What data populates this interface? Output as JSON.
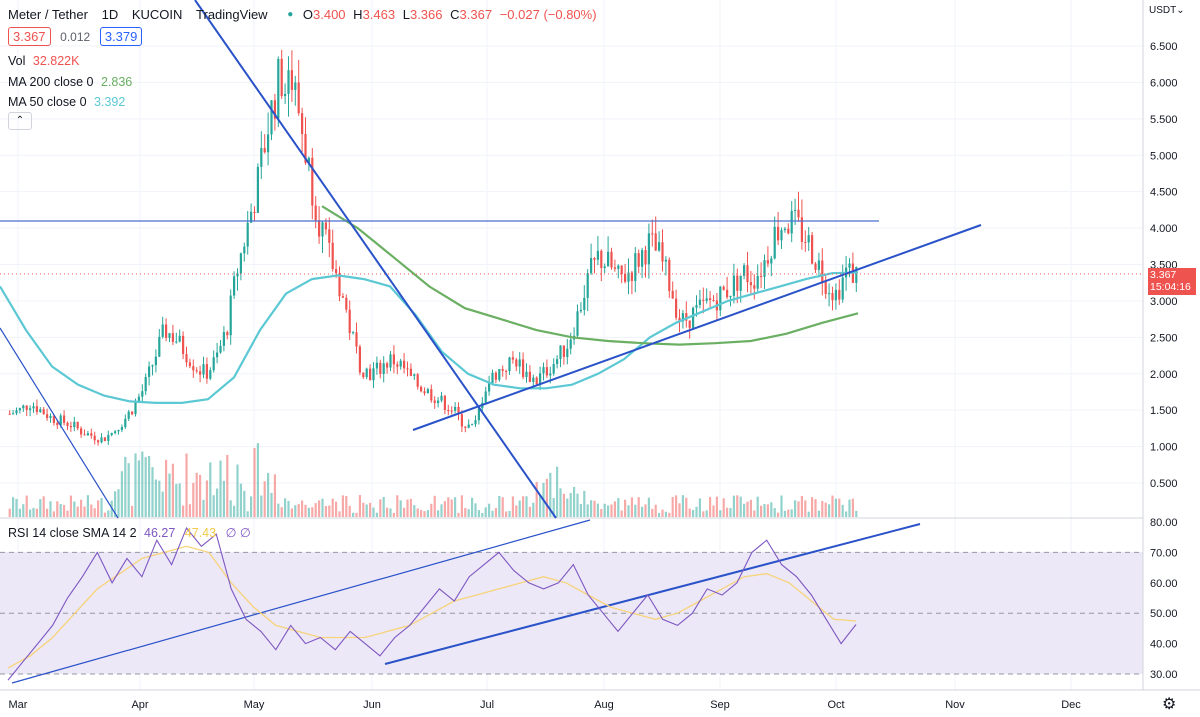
{
  "header": {
    "symbol": "Meter / Tether",
    "interval": "1D",
    "exchange": "KUCOIN",
    "source": "TradingView",
    "ohlc": [
      {
        "k": "O",
        "v": "3.400"
      },
      {
        "k": "H",
        "v": "3.463"
      },
      {
        "k": "L",
        "v": "3.366"
      },
      {
        "k": "C",
        "v": "3.367"
      }
    ],
    "change": "−0.027 (−0.80%)",
    "bid": "3.367",
    "spread": "0.012",
    "ask": "3.379"
  },
  "indicators": {
    "vol_label": "Vol",
    "vol_value": "32.822K",
    "ma200_label": "MA 200 close 0",
    "ma200_value": "2.836",
    "ma50_label": "MA 50 close 0",
    "ma50_value": "3.392",
    "collapse_glyph": "⌃"
  },
  "rsi": {
    "label": "RSI 14 close SMA 14 2",
    "value": "46.27",
    "sma_value": "47.43",
    "extra": "∅  ∅"
  },
  "axis": {
    "currency": "USDT⌄",
    "last_price": "3.367",
    "countdown": "15:04:16"
  },
  "colors": {
    "up": "#26a69a",
    "down": "#ef5350",
    "ma50": "#5bc8d4",
    "ma200": "#6aaf62",
    "trend": "#2a52c9",
    "rsi": "#7e57c2",
    "rsi_sma": "#f7d37b",
    "rsi_band": "#ece8f7"
  },
  "chart_data": [
    {
      "type": "candlestick",
      "title": "Meter / Tether · 1D · KUCOIN",
      "x_ticks": [
        "Mar",
        "Apr",
        "May",
        "Jun",
        "Jul",
        "Aug",
        "Sep",
        "Oct",
        "Nov",
        "Dec"
      ],
      "y_ticks": [
        "6.500",
        "6.000",
        "5.500",
        "5.000",
        "4.500",
        "4.000",
        "3.500",
        "3.000",
        "2.500",
        "2.000",
        "1.500",
        "1.000",
        "0.500"
      ],
      "ylim": [
        0.1,
        6.7
      ],
      "grid": true,
      "horizontal_level": 4.1,
      "close_series": [
        1.45,
        1.5,
        1.6,
        1.5,
        1.4,
        1.35,
        1.3,
        1.2,
        1.15,
        1.1,
        1.2,
        1.35,
        1.55,
        1.8,
        2.2,
        2.6,
        2.5,
        2.3,
        2.1,
        2.0,
        2.2,
        2.6,
        3.4,
        4.0,
        4.6,
        5.4,
        6.0,
        6.2,
        5.6,
        4.8,
        4.1,
        3.6,
        3.2,
        2.6,
        2.1,
        2.0,
        2.1,
        2.2,
        2.1,
        1.9,
        1.8,
        1.7,
        1.6,
        1.5,
        1.3,
        1.25,
        1.8,
        2.0,
        2.1,
        2.2,
        2.0,
        1.9,
        2.05,
        2.2,
        2.4,
        2.8,
        3.3,
        3.6,
        3.5,
        3.3,
        3.4,
        3.6,
        3.8,
        3.6,
        3.2,
        2.7,
        2.8,
        2.9,
        3.0,
        3.1,
        3.2,
        3.4,
        3.3,
        3.5,
        3.9,
        4.1,
        4.05,
        3.9,
        3.6,
        3.3,
        3.1,
        3.4,
        3.37
      ],
      "ma50_series": [
        3.2,
        2.6,
        2.1,
        1.85,
        1.7,
        1.62,
        1.6,
        1.6,
        1.65,
        1.95,
        2.6,
        3.1,
        3.3,
        3.35,
        3.3,
        3.2,
        2.8,
        2.3,
        2.0,
        1.85,
        1.8,
        1.8,
        1.85,
        2.0,
        2.2,
        2.5,
        2.7,
        2.85,
        3.0,
        3.1,
        3.2,
        3.3,
        3.38,
        3.39
      ],
      "ma200_series": [
        4.3,
        4.0,
        3.6,
        3.2,
        2.9,
        2.75,
        2.6,
        2.5,
        2.45,
        2.42,
        2.4,
        2.42,
        2.45,
        2.55,
        2.7,
        2.83
      ],
      "volume_max_label": "32.822K"
    },
    {
      "type": "line",
      "title": "RSI 14 close SMA 14 2",
      "y_ticks": [
        "80.00",
        "70.00",
        "60.00",
        "50.00",
        "40.00",
        "30.00"
      ],
      "ylim": [
        27,
        82
      ],
      "bands": [
        30,
        50,
        70
      ],
      "rsi_series": [
        28,
        34,
        40,
        46,
        55,
        62,
        70,
        60,
        68,
        62,
        74,
        66,
        78,
        72,
        76,
        58,
        48,
        44,
        38,
        46,
        40,
        42,
        38,
        44,
        40,
        36,
        42,
        46,
        52,
        58,
        54,
        62,
        66,
        70,
        64,
        60,
        58,
        60,
        66,
        56,
        50,
        44,
        50,
        56,
        48,
        46,
        50,
        58,
        56,
        60,
        70,
        74,
        66,
        62,
        56,
        48,
        40,
        46.27
      ],
      "sma_series": [
        32,
        36,
        42,
        50,
        58,
        63,
        68,
        70,
        72,
        70,
        60,
        52,
        46,
        44,
        42,
        42,
        42,
        44,
        46,
        50,
        54,
        56,
        58,
        60,
        62,
        60,
        56,
        52,
        50,
        48,
        50,
        54,
        58,
        62,
        63,
        60,
        54,
        48,
        47.43
      ]
    }
  ]
}
